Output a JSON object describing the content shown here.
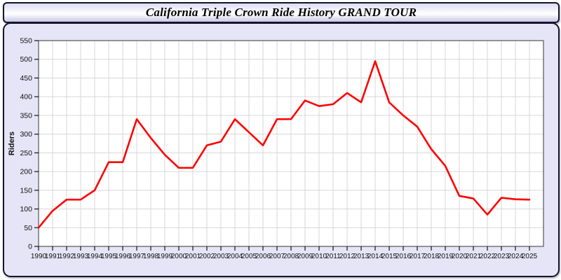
{
  "title_bar": {
    "title": "California Triple Crown Ride History GRAND TOUR"
  },
  "chart_data": {
    "type": "line",
    "title": "California Triple Crown Ride History GRAND TOUR",
    "xlabel": "",
    "ylabel": "Riders",
    "ylim": [
      0,
      550
    ],
    "yticks": [
      0,
      50,
      100,
      150,
      200,
      250,
      300,
      350,
      400,
      450,
      500,
      550
    ],
    "grid": true,
    "legend": false,
    "x": [
      1990,
      1991,
      1992,
      1993,
      1994,
      1995,
      1996,
      1997,
      1998,
      1999,
      2000,
      2001,
      2002,
      2003,
      2004,
      2005,
      2006,
      2007,
      2008,
      2009,
      2010,
      2011,
      2012,
      2013,
      2014,
      2015,
      2016,
      2017,
      2018,
      2019,
      2020,
      2021,
      2022,
      2023,
      2024,
      2025
    ],
    "series": [
      {
        "name": "Riders",
        "color": "#ff0000",
        "values": [
          50,
          95,
          125,
          125,
          150,
          225,
          225,
          340,
          290,
          245,
          210,
          210,
          270,
          280,
          340,
          305,
          270,
          340,
          340,
          390,
          375,
          380,
          410,
          385,
          495,
          385,
          350,
          320,
          260,
          215,
          135,
          128,
          85,
          130,
          126,
          125
        ]
      }
    ]
  },
  "colors": {
    "page_background": "#ffffff",
    "panel_background": "#e5e5f7",
    "panel_border": "#14142a",
    "plot_background": "#ffffff",
    "plot_border": "#555555",
    "gridline": "#d7d7d7",
    "tick_and_text": "#111111",
    "line": "#ff0000"
  }
}
